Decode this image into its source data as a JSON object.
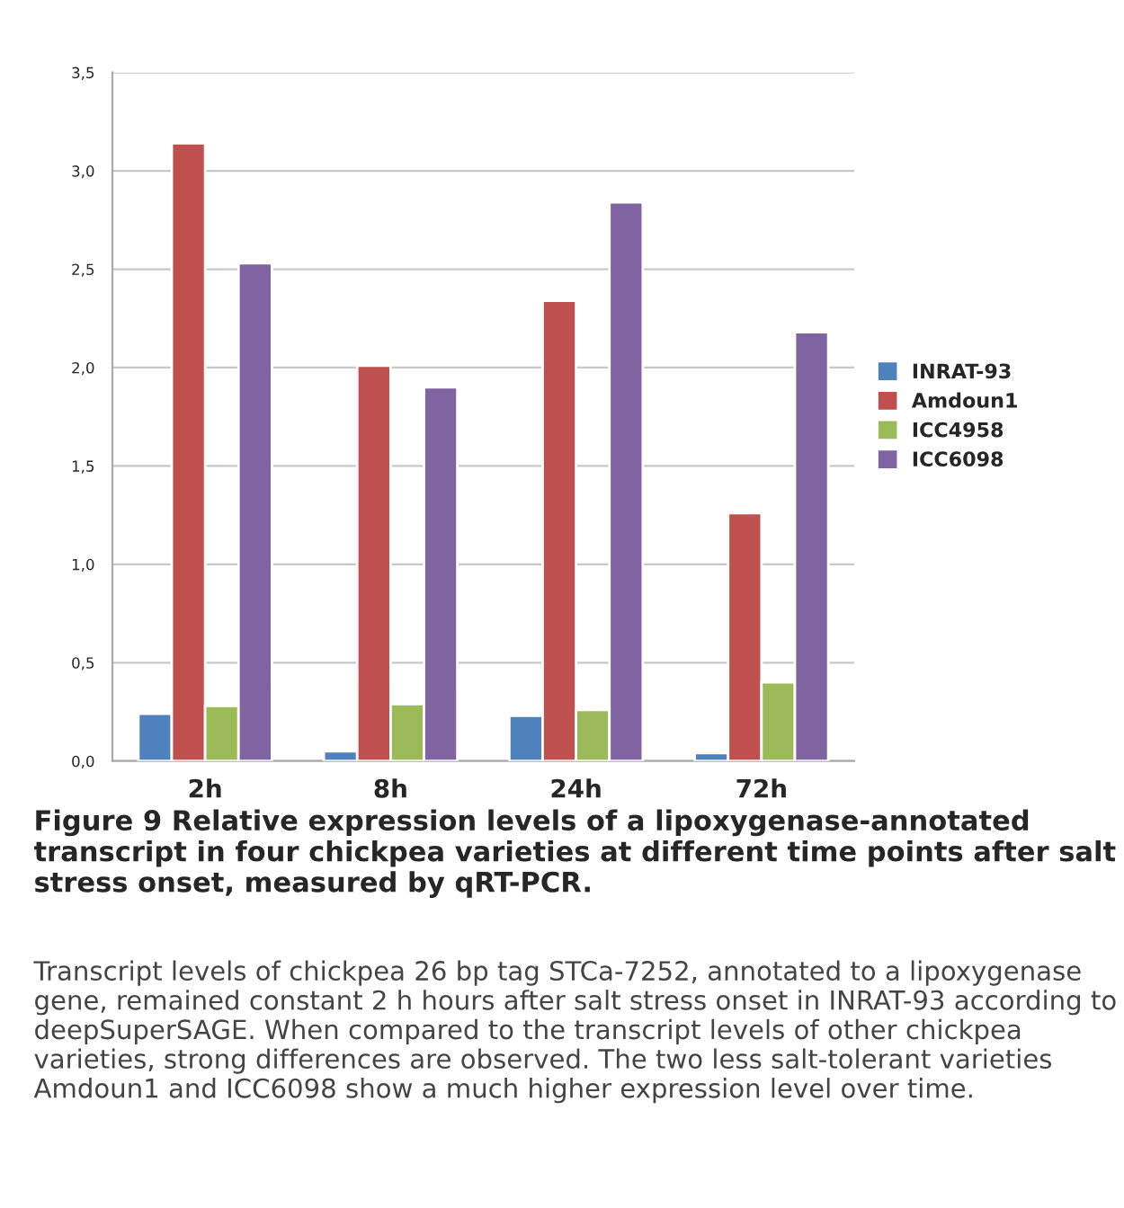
{
  "chart_data": {
    "type": "bar",
    "title": "Figure 9 Relative expression levels of a lipoxygenase-annotated transcript in four chickpea varieties at different time points after salt stress onset, measured by qRT-PCR.",
    "annotations": [
      "Transcript levels of chickpea 26 bp tag STCa-7252, annotated to a lipoxygenase gene, remained constant 2 h hours after salt stress onset in INRAT-93 according to deepSuperSAGE. When compared to the transcript levels of other chickpea varieties, strong differences are observed. The two less salt-tolerant varieties Amdoun1 and ICC6098 show a much higher expression level over time."
    ],
    "categories": [
      "2h",
      "8h",
      "24h",
      "72h"
    ],
    "series": [
      {
        "name": "INRAT-93",
        "color": "#4f81bd",
        "values": [
          0.24,
          0.05,
          0.23,
          0.04
        ]
      },
      {
        "name": "Amdoun1",
        "color": "#c0504d",
        "values": [
          3.14,
          2.01,
          2.34,
          1.26
        ]
      },
      {
        "name": "ICC4958",
        "color": "#9bbb59",
        "values": [
          0.28,
          0.29,
          0.26,
          0.4
        ]
      },
      {
        "name": "ICC6098",
        "color": "#8064a2",
        "values": [
          2.53,
          1.9,
          2.84,
          2.18
        ]
      }
    ],
    "ylim": [
      0,
      3.5
    ],
    "yticks": [
      {
        "value": 0,
        "label": "0,0"
      },
      {
        "value": 0.5,
        "label": "0,5"
      },
      {
        "value": 1,
        "label": "1,0"
      },
      {
        "value": 1.5,
        "label": "1,5"
      },
      {
        "value": 2,
        "label": "2,0"
      },
      {
        "value": 2.5,
        "label": "2,5"
      },
      {
        "value": 3,
        "label": "3,0"
      },
      {
        "value": 3.5,
        "label": "3,5"
      }
    ],
    "grid": "y",
    "legend": "right"
  }
}
